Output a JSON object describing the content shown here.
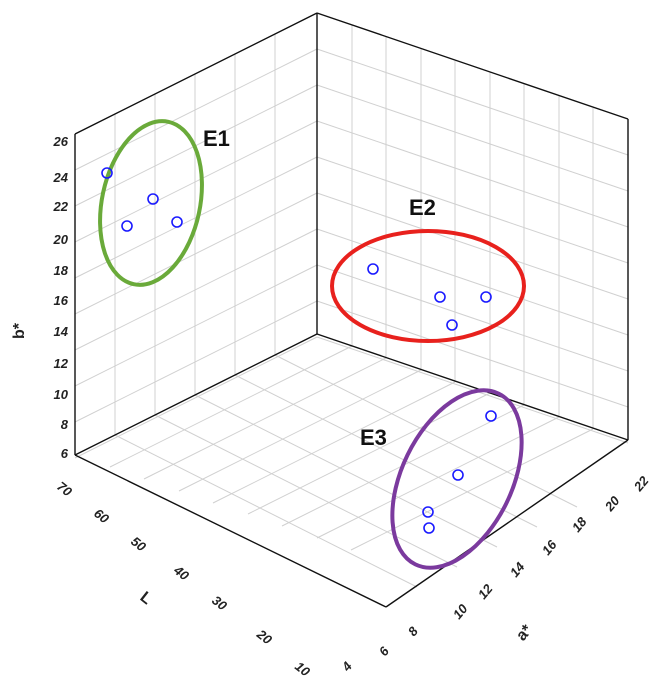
{
  "chart_data": {
    "type": "scatter",
    "title": "",
    "axes": {
      "x": {
        "label": "L",
        "ticks": [
          "70",
          "60",
          "50",
          "40",
          "30",
          "20",
          "10"
        ]
      },
      "y": {
        "label": "a*",
        "ticks": [
          "4",
          "6",
          "8",
          "10",
          "12",
          "14",
          "16",
          "18",
          "20",
          "22"
        ]
      },
      "z": {
        "label": "b*",
        "ticks": [
          "6",
          "8",
          "10",
          "12",
          "14",
          "16",
          "18",
          "20",
          "22",
          "24",
          "26"
        ]
      }
    },
    "grid": true,
    "groups": [
      {
        "name": "E1",
        "color": "#6aaa3a"
      },
      {
        "name": "E2",
        "color": "#e8211d"
      },
      {
        "name": "E3",
        "color": "#7b3a9e"
      }
    ],
    "marker_color": "#1a1aff"
  }
}
